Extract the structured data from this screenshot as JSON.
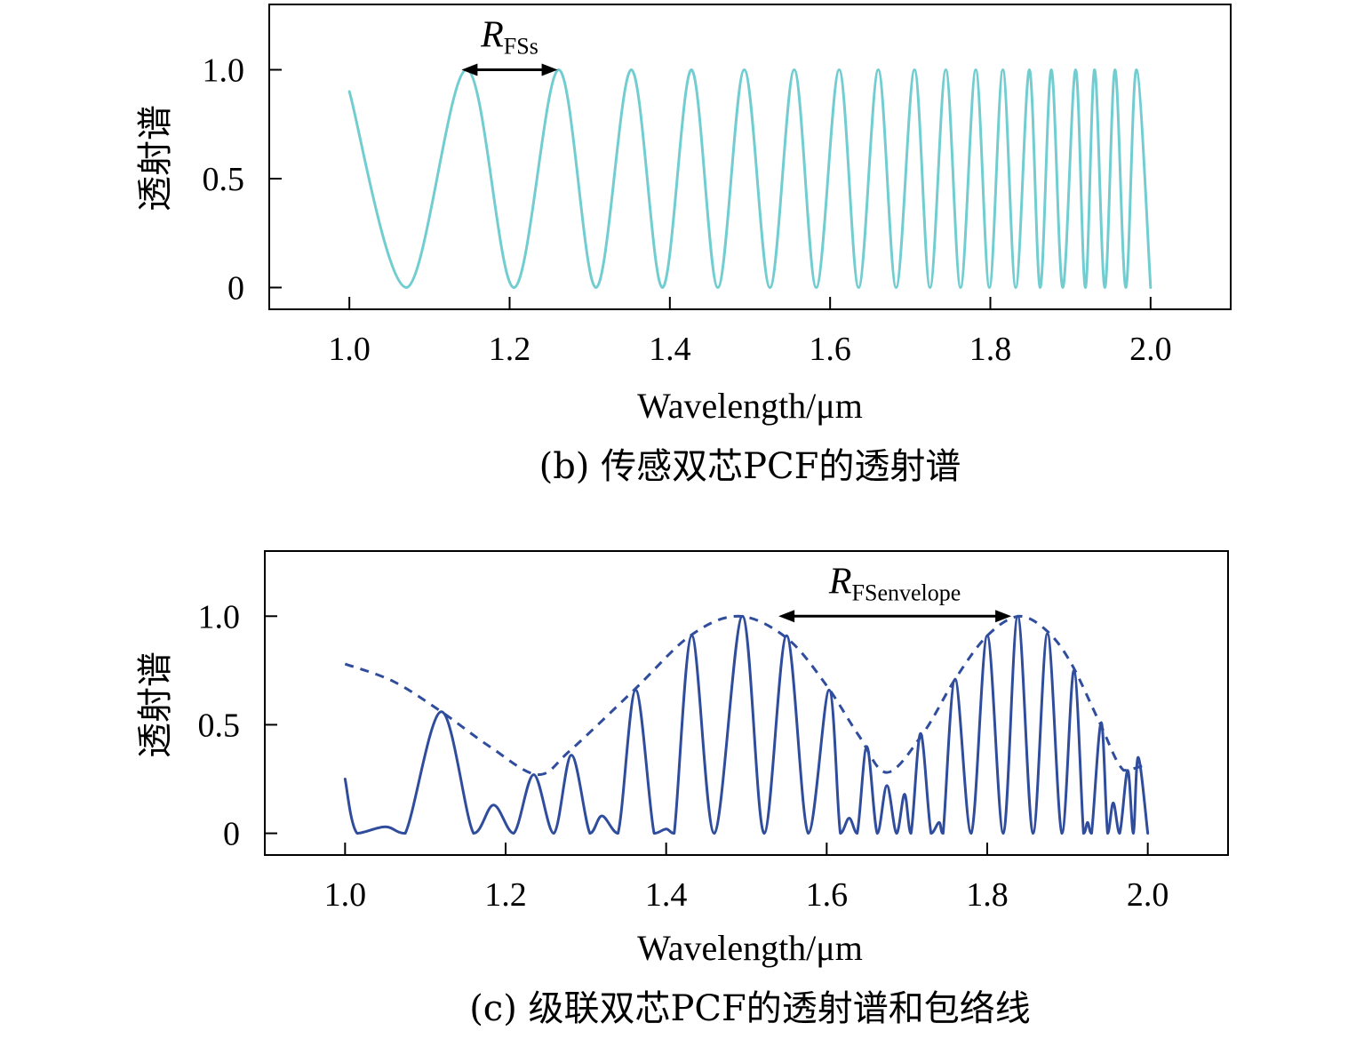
{
  "chart_data": [
    {
      "id": "b",
      "type": "line",
      "caption": "(b) 传感双芯PCF的透射谱",
      "xlabel": "Wavelength/μm",
      "ylabel": "透射谱",
      "xlim": [
        0.9,
        2.1
      ],
      "ylim": [
        -0.1,
        1.3
      ],
      "xticks": [
        1.0,
        1.2,
        1.4,
        1.6,
        1.8,
        2.0
      ],
      "xtick_labels": [
        "1.0",
        "1.2",
        "1.4",
        "1.6",
        "1.8",
        "2.0"
      ],
      "yticks": [
        0,
        0.5,
        1.0
      ],
      "ytick_labels": [
        "0",
        "0.5",
        "1.0"
      ],
      "grid": false,
      "series": [
        {
          "style": "solid",
          "color": "#72cdd0",
          "x": [
            1.0,
            1.0714,
            1.1464,
            1.2054,
            1.2613,
            1.3078,
            1.3519,
            1.3907,
            1.4269,
            1.4599,
            1.4929,
            1.5249,
            1.5552,
            1.5827,
            1.6113,
            1.6356,
            1.6601,
            1.6824,
            1.7053,
            1.7247,
            1.7444,
            1.7628,
            1.7818,
            1.7988,
            1.8156,
            1.8317,
            1.8487,
            1.8622,
            1.8761,
            1.8904,
            1.9064,
            1.9186,
            1.9301,
            1.9429,
            1.9556,
            1.9691,
            1.9823,
            2.0
          ],
          "y": [
            0.9,
            0.0,
            1.0,
            0.0,
            1.0,
            0.0,
            1.0,
            0.0,
            1.0,
            0.0,
            1.0,
            0.0,
            1.0,
            0.0,
            1.0,
            0.0,
            1.0,
            0.0,
            1.0,
            0.0,
            1.0,
            0.0,
            1.0,
            0.0,
            1.0,
            0.0,
            1.0,
            0.0,
            1.0,
            0.0,
            1.0,
            0.0,
            1.0,
            0.0,
            1.0,
            0.0,
            1.0,
            0.0
          ]
        }
      ],
      "annotation": {
        "symbol": "R",
        "subscript": "FSs",
        "x_from": 1.14,
        "x_to": 1.26,
        "y": 1.0
      }
    },
    {
      "id": "c",
      "type": "line",
      "caption": "(c) 级联双芯PCF的透射谱和包络线",
      "xlabel": "Wavelength/μm",
      "ylabel": "透射谱",
      "xlim": [
        0.9,
        2.1
      ],
      "ylim": [
        -0.1,
        1.3
      ],
      "xticks": [
        1.0,
        1.2,
        1.4,
        1.6,
        1.8,
        2.0
      ],
      "xtick_labels": [
        "1.0",
        "1.2",
        "1.4",
        "1.6",
        "1.8",
        "2.0"
      ],
      "yticks": [
        0,
        0.5,
        1.0
      ],
      "ytick_labels": [
        "0",
        "0.5",
        "1.0"
      ],
      "grid": false,
      "series": [
        {
          "style": "solid",
          "color": "#2f4d9c",
          "x": [
            1.0,
            1.015,
            1.05,
            1.075,
            1.12,
            1.16,
            1.185,
            1.21,
            1.235,
            1.26,
            1.282,
            1.305,
            1.32,
            1.34,
            1.362,
            1.385,
            1.4,
            1.41,
            1.432,
            1.46,
            1.495,
            1.522,
            1.55,
            1.577,
            1.603,
            1.617,
            1.628,
            1.638,
            1.65,
            1.663,
            1.675,
            1.687,
            1.697,
            1.705,
            1.717,
            1.73,
            1.74,
            1.745,
            1.76,
            1.78,
            1.8,
            1.82,
            1.838,
            1.857,
            1.875,
            1.893,
            1.908,
            1.92,
            1.925,
            1.93,
            1.942,
            1.95,
            1.957,
            1.965,
            1.975,
            1.982,
            1.988,
            2.0
          ],
          "y": [
            0.25,
            0.0,
            0.03,
            0.0,
            0.56,
            0.0,
            0.13,
            0.0,
            0.27,
            0.0,
            0.36,
            0.0,
            0.08,
            0.0,
            0.66,
            0.0,
            0.02,
            0.0,
            0.91,
            0.0,
            1.0,
            0.0,
            0.91,
            0.0,
            0.66,
            0.0,
            0.07,
            0.0,
            0.4,
            0.0,
            0.22,
            0.0,
            0.18,
            0.0,
            0.46,
            0.0,
            0.05,
            0.0,
            0.71,
            0.0,
            0.91,
            0.0,
            1.0,
            0.0,
            0.92,
            0.0,
            0.75,
            0.0,
            0.05,
            0.0,
            0.51,
            0.0,
            0.14,
            0.0,
            0.29,
            0.0,
            0.35,
            0.0
          ]
        },
        {
          "style": "dashed",
          "color": "#2f4d9c",
          "x": [
            1.0,
            1.06,
            1.12,
            1.18,
            1.24,
            1.28,
            1.36,
            1.43,
            1.49,
            1.55,
            1.6,
            1.64,
            1.675,
            1.72,
            1.76,
            1.8,
            1.84,
            1.875,
            1.905,
            1.94,
            1.97,
            2.0
          ],
          "y": [
            0.78,
            0.7,
            0.56,
            0.4,
            0.27,
            0.38,
            0.66,
            0.91,
            1.0,
            0.9,
            0.68,
            0.45,
            0.28,
            0.46,
            0.71,
            0.91,
            1.0,
            0.93,
            0.78,
            0.51,
            0.29,
            0.32
          ]
        }
      ],
      "annotation": {
        "symbol": "R",
        "subscript": "FSenvelope",
        "x_from": 1.54,
        "x_to": 1.83,
        "y": 1.0
      }
    }
  ]
}
